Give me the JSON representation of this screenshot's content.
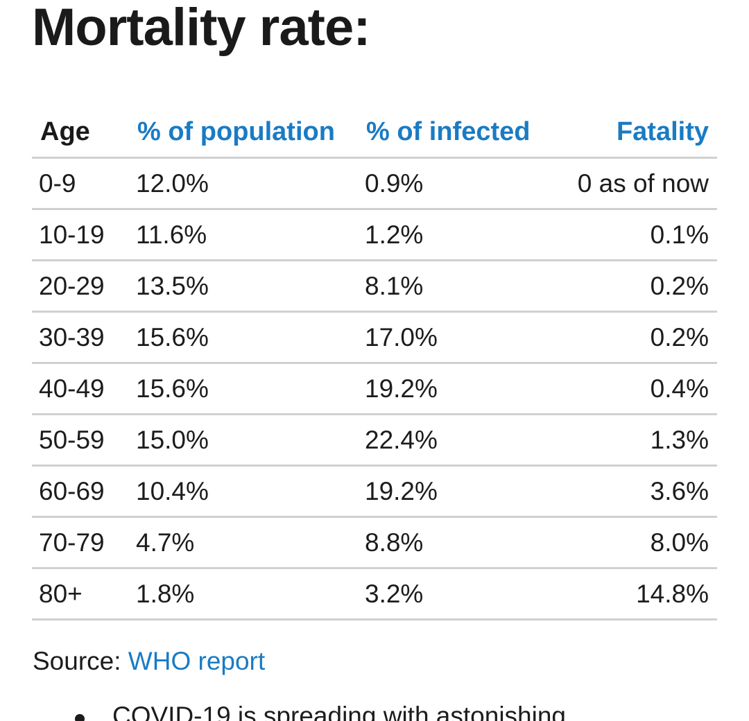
{
  "title": "Mortality rate:",
  "table": {
    "headers": {
      "age": "Age",
      "population": "% of population",
      "infected": "% of infected",
      "fatality": "Fatality"
    },
    "rows": [
      {
        "age": "0-9",
        "population": "12.0%",
        "infected": "0.9%",
        "fatality": "0 as of now"
      },
      {
        "age": "10-19",
        "population": "11.6%",
        "infected": "1.2%",
        "fatality": "0.1%"
      },
      {
        "age": "20-29",
        "population": "13.5%",
        "infected": "8.1%",
        "fatality": "0.2%"
      },
      {
        "age": "30-39",
        "population": "15.6%",
        "infected": "17.0%",
        "fatality": "0.2%"
      },
      {
        "age": "40-49",
        "population": "15.6%",
        "infected": "19.2%",
        "fatality": "0.4%"
      },
      {
        "age": "50-59",
        "population": "15.0%",
        "infected": "22.4%",
        "fatality": "1.3%"
      },
      {
        "age": "60-69",
        "population": "10.4%",
        "infected": "19.2%",
        "fatality": "3.6%"
      },
      {
        "age": "70-79",
        "population": "4.7%",
        "infected": "8.8%",
        "fatality": "8.0%"
      },
      {
        "age": "80+",
        "population": "1.8%",
        "infected": "3.2%",
        "fatality": "14.8%"
      }
    ]
  },
  "source": {
    "label": "Source:",
    "link_text": "WHO report"
  },
  "bullet": {
    "text": "COVID-19 is spreading with astonishing"
  },
  "colors": {
    "link": "#1a7bc4",
    "text": "#1c1c1e",
    "divider": "#d0d0d0"
  }
}
